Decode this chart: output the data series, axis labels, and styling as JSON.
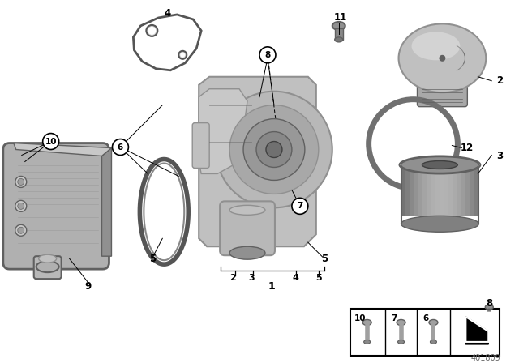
{
  "bg_color": "#ffffff",
  "footer_number": "401809",
  "gray_light": "#c8c8c8",
  "gray_mid": "#909090",
  "gray_dark": "#606060",
  "gray_darker": "#404040",
  "gray_body": "#b0b0b0",
  "gray_shadow": "#787878",
  "line_color": "#000000"
}
